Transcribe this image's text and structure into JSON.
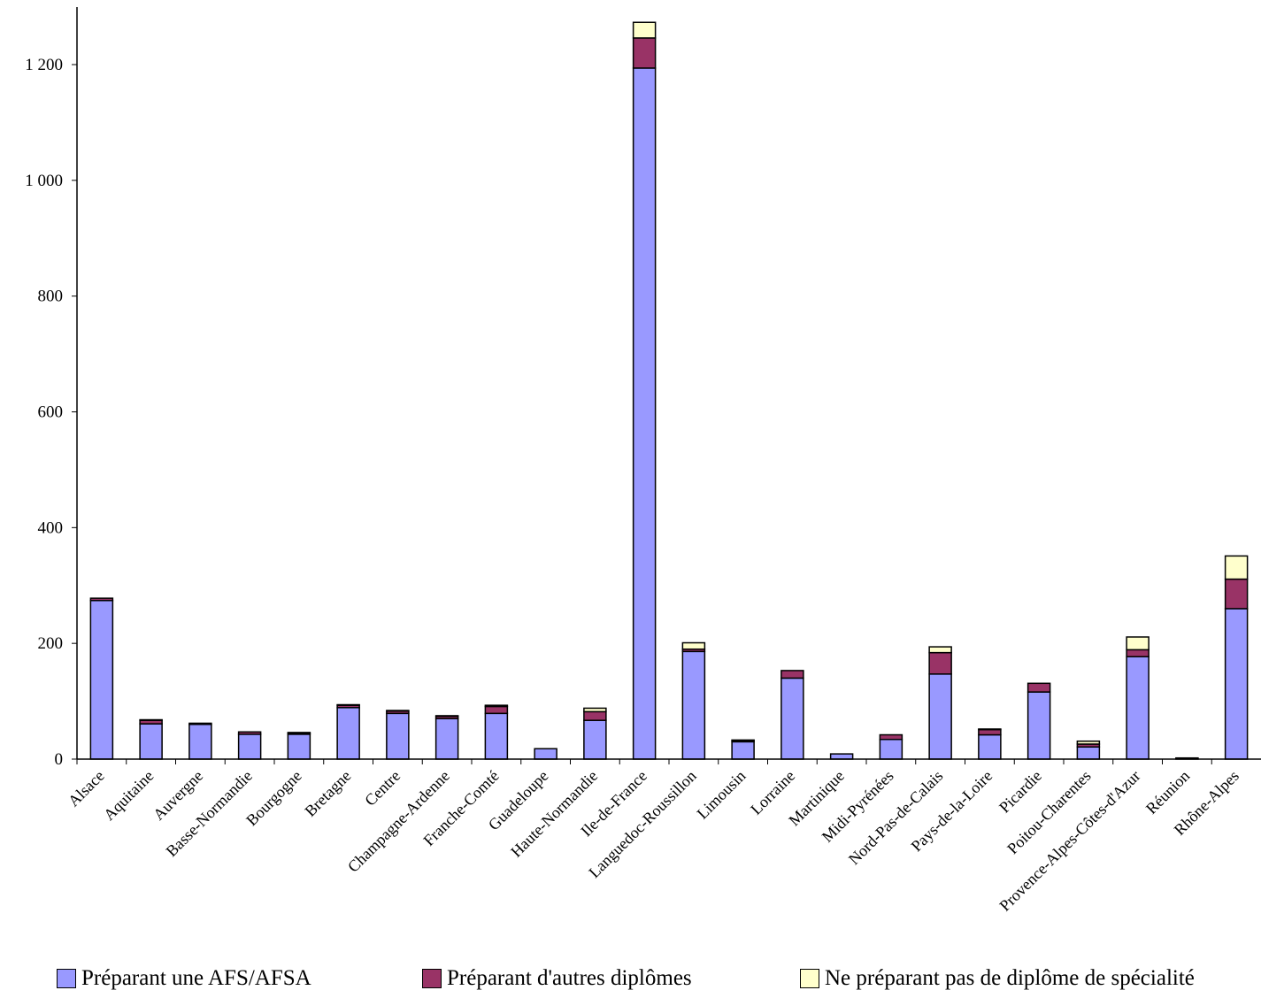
{
  "chart_data": {
    "type": "bar",
    "stacked": true,
    "title": "",
    "xlabel": "",
    "ylabel": "",
    "ylim": [
      0,
      1300
    ],
    "yticks": [
      0,
      200,
      400,
      600,
      800,
      1000,
      1200
    ],
    "ytick_labels": [
      "0",
      "200",
      "400",
      "600",
      "800",
      "1 000",
      "1 200"
    ],
    "grid": false,
    "legend_position": "bottom",
    "categories": [
      "Alsace",
      "Aquitaine",
      "Auvergne",
      "Basse-Normandie",
      "Bourgogne",
      "Bretagne",
      "Centre",
      "Champagne-Ardenne",
      "Franche-Comté",
      "Guadeloupe",
      "Haute-Normandie",
      "Ile-de-France",
      "Languedoc-Roussillon",
      "Limousin",
      "Lorraine",
      "Martinique",
      "Midi-Pyrénées",
      "Nord-Pas-de-Calais",
      "Pays-de-la-Loire",
      "Picardie",
      "Poitou-Charentes",
      "Provence-Alpes-Côtes-d'Azur",
      "Réunion",
      "Rhône-Alpes"
    ],
    "series": [
      {
        "name": "Préparant une AFS/AFSA",
        "color": "#9999ff",
        "values": [
          274,
          61,
          60,
          43,
          43,
          89,
          79,
          70,
          79,
          18,
          67,
          1194,
          186,
          30,
          140,
          9,
          34,
          147,
          42,
          116,
          21,
          177,
          1,
          260
        ]
      },
      {
        "name": "Préparant d'autres diplômes",
        "color": "#993366",
        "values": [
          4,
          6,
          2,
          4,
          2,
          4,
          4,
          4,
          12,
          0,
          15,
          52,
          4,
          2,
          13,
          0,
          8,
          37,
          9,
          15,
          5,
          12,
          1,
          51
        ]
      },
      {
        "name": "Ne préparant pas de diplôme de spécialité",
        "color": "#ffffcc",
        "values": [
          0,
          1,
          0,
          0,
          1,
          1,
          1,
          1,
          2,
          0,
          6,
          27,
          11,
          1,
          0,
          0,
          0,
          10,
          1,
          0,
          5,
          22,
          0,
          40
        ]
      }
    ]
  }
}
